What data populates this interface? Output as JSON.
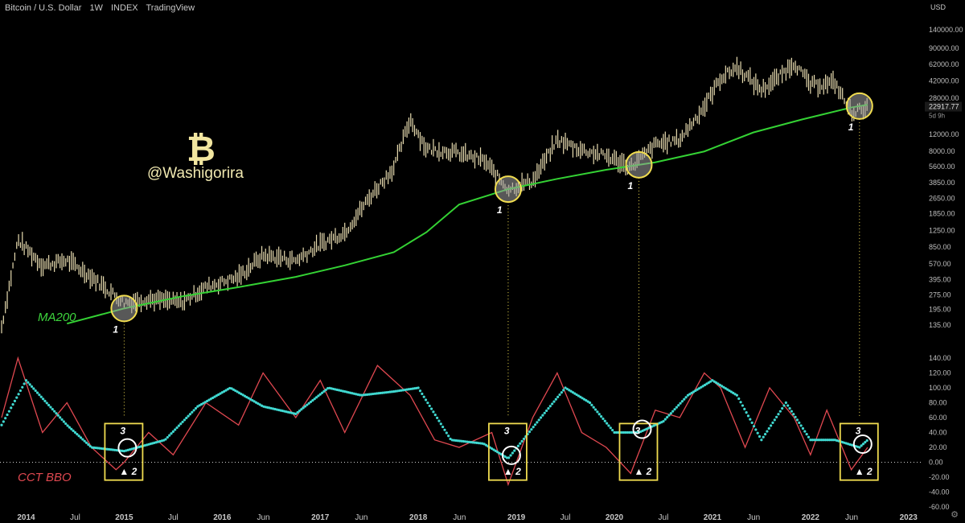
{
  "header": {
    "symbol": "Bitcoin / U.S. Dollar",
    "interval": "1W",
    "source": "INDEX",
    "platform": "TradingView"
  },
  "watermark": {
    "logo": "₿",
    "handle": "@Washigorira"
  },
  "labels": {
    "ma": "MA200",
    "cct": "CCT BBO"
  },
  "colors": {
    "background": "#000000",
    "candle": "#e8dcb0",
    "ma200": "#34d234",
    "cct": "#e04850",
    "signal": "#40d8d0",
    "highlight": "#f0dc50"
  },
  "chart_data": [
    {
      "type": "line",
      "title": "",
      "ylabel": "USD",
      "yscale": "log",
      "price_ticks": [
        "140000.00",
        "90000.00",
        "62000.00",
        "42000.00",
        "28000.00",
        "12000.00",
        "8000.00",
        "5600.00",
        "3850.00",
        "2650.00",
        "1850.00",
        "1250.00",
        "850.00",
        "570.00",
        "395.00",
        "275.00",
        "195.00",
        "135.00"
      ],
      "current_price_label": "22917.77",
      "countdown": "5d 9h",
      "xaxis": [
        "2014",
        "Jul",
        "2015",
        "Jul",
        "2016",
        "Jun",
        "2017",
        "Jun",
        "2018",
        "Jun",
        "2019",
        "Jul",
        "2020",
        "Jul",
        "2021",
        "Jun",
        "2022",
        "Jun",
        "2023"
      ],
      "series": [
        {
          "name": "",
          "kind": "price",
          "x": [
            "2013-10",
            "2013-12",
            "2014-03",
            "2014-06",
            "2014-09",
            "2015-01",
            "2015-04",
            "2015-08",
            "2015-11",
            "2016-03",
            "2016-06",
            "2016-10",
            "2017-01",
            "2017-04",
            "2017-07",
            "2017-10",
            "2017-12",
            "2018-02",
            "2018-05",
            "2018-09",
            "2018-12",
            "2019-03",
            "2019-06",
            "2019-09",
            "2019-12",
            "2020-03",
            "2020-06",
            "2020-09",
            "2020-12",
            "2021-02",
            "2021-04",
            "2021-07",
            "2021-09",
            "2021-11",
            "2022-01",
            "2022-04",
            "2022-06",
            "2022-08"
          ],
          "values": [
            130,
            1000,
            550,
            620,
            420,
            230,
            250,
            230,
            330,
            420,
            700,
            620,
            900,
            1200,
            2700,
            5500,
            17000,
            8500,
            8000,
            6500,
            3300,
            4000,
            10500,
            8300,
            7200,
            5500,
            9400,
            10600,
            23000,
            45000,
            58000,
            34000,
            45000,
            65000,
            38000,
            40000,
            20000,
            23000
          ]
        },
        {
          "name": "MA200",
          "kind": "ma",
          "x": [
            "2014-06",
            "2015-01",
            "2015-08",
            "2016-03",
            "2016-10",
            "2017-04",
            "2017-10",
            "2018-02",
            "2018-06",
            "2018-12",
            "2019-06",
            "2019-12",
            "2020-06",
            "2020-12",
            "2021-06",
            "2021-12",
            "2022-06",
            "2022-08"
          ],
          "values": [
            140,
            200,
            265,
            330,
            420,
            550,
            750,
            1200,
            2300,
            3300,
            4200,
            5200,
            6200,
            8000,
            12500,
            17000,
            22500,
            24000
          ]
        },
        {
          "name": "CCT BBO",
          "kind": "cct",
          "x": [
            "2013-10",
            "2013-12",
            "2014-03",
            "2014-06",
            "2014-09",
            "2014-12",
            "2015-01",
            "2015-04",
            "2015-07",
            "2015-11",
            "2016-03",
            "2016-06",
            "2016-10",
            "2017-01",
            "2017-04",
            "2017-08",
            "2017-12",
            "2018-03",
            "2018-06",
            "2018-10",
            "2018-12",
            "2019-03",
            "2019-06",
            "2019-09",
            "2019-12",
            "2020-03",
            "2020-06",
            "2020-09",
            "2020-12",
            "2021-02",
            "2021-05",
            "2021-08",
            "2021-11",
            "2022-01",
            "2022-03",
            "2022-06",
            "2022-08"
          ],
          "values": [
            60,
            140,
            40,
            80,
            20,
            -10,
            0,
            40,
            10,
            80,
            50,
            120,
            60,
            110,
            40,
            130,
            90,
            30,
            20,
            40,
            -30,
            60,
            120,
            40,
            20,
            -15,
            70,
            60,
            120,
            100,
            20,
            100,
            60,
            10,
            70,
            -10,
            20
          ]
        },
        {
          "name": "",
          "kind": "signal",
          "x": [
            "2013-10",
            "2014-01",
            "2014-06",
            "2014-09",
            "2015-01",
            "2015-06",
            "2015-10",
            "2016-02",
            "2016-06",
            "2016-10",
            "2017-02",
            "2017-06",
            "2017-10",
            "2018-01",
            "2018-05",
            "2018-09",
            "2018-12",
            "2019-04",
            "2019-07",
            "2019-10",
            "2020-01",
            "2020-04",
            "2020-07",
            "2020-10",
            "2021-01",
            "2021-04",
            "2021-07",
            "2021-10",
            "2022-01",
            "2022-04",
            "2022-07",
            "2022-08"
          ],
          "values": [
            50,
            110,
            50,
            20,
            15,
            30,
            75,
            100,
            75,
            65,
            100,
            90,
            95,
            100,
            30,
            25,
            5,
            60,
            100,
            80,
            40,
            40,
            55,
            90,
            110,
            90,
            30,
            80,
            30,
            30,
            20,
            30
          ]
        }
      ],
      "cct_ticks": [
        "140.00",
        "120.00",
        "100.00",
        "80.00",
        "60.00",
        "40.00",
        "20.00",
        "0.00",
        "-20.00",
        "-40.00",
        "-60.00"
      ],
      "annotations": [
        {
          "date": "2015-01",
          "label": "1",
          "boxes": [
            "3",
            "2"
          ]
        },
        {
          "date": "2018-12",
          "label": "1",
          "boxes": [
            "3",
            "2"
          ]
        },
        {
          "date": "2020-04",
          "label": "1",
          "boxes": [
            "3",
            "2"
          ]
        },
        {
          "date": "2022-07",
          "label": "1",
          "boxes": [
            "3",
            "2"
          ]
        }
      ]
    }
  ]
}
